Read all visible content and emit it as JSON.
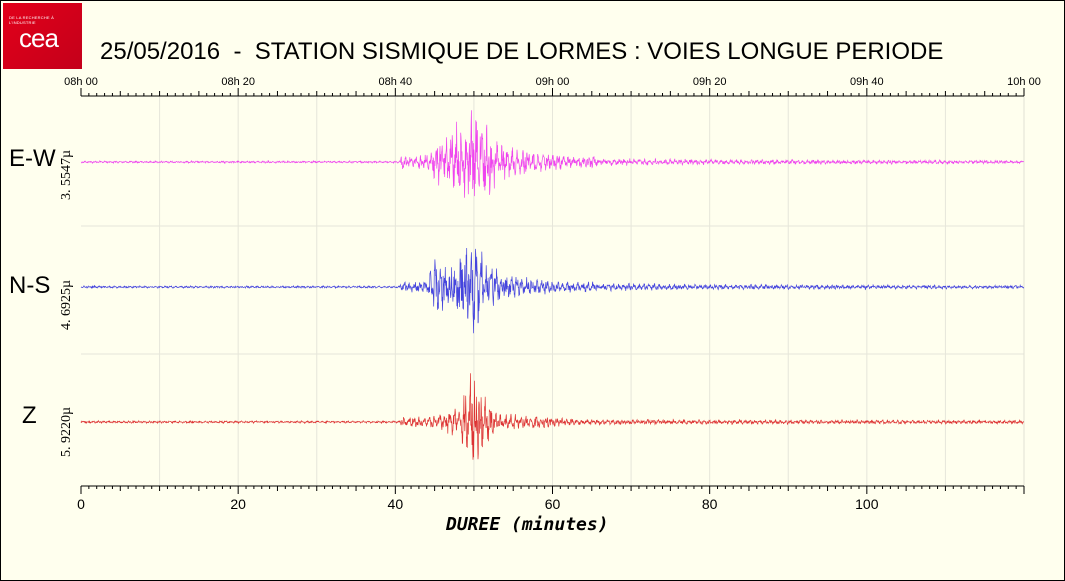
{
  "logo": {
    "text": "cea",
    "tagline": "DE LA RECHERCHE À L'INDUSTRIE",
    "color": "#e2001a"
  },
  "title": "25/05/2016  -  STATION SISMIQUE DE LORMES : VOIES LONGUE PERIODE",
  "chart_data": {
    "type": "line",
    "title": "25/05/2016  -  STATION SISMIQUE DE LORMES : VOIES LONGUE PERIODE",
    "xlabel": "DUREE (minutes)",
    "xlim": [
      0,
      120
    ],
    "x_ticks": [
      "0",
      "20",
      "40",
      "60",
      "80",
      "100"
    ],
    "x_tick_values": [
      0,
      20,
      40,
      60,
      80,
      100
    ],
    "top_axis_ticks": [
      "08h 00",
      "08h 20",
      "08h 40",
      "09h 00",
      "09h 20",
      "09h 40",
      "10h 00"
    ],
    "top_axis_values": [
      0,
      20,
      40,
      60,
      80,
      100,
      120
    ],
    "grid": true,
    "series": [
      {
        "name": "E-W",
        "scale": "3. 5547µ",
        "color": "#ee44ee",
        "envelope": [
          {
            "x": 0,
            "amp": 0.02
          },
          {
            "x": 40.5,
            "amp": 0.02
          },
          {
            "x": 41,
            "amp": 0.2
          },
          {
            "x": 42,
            "amp": 0.08
          },
          {
            "x": 44.5,
            "amp": 0.25
          },
          {
            "x": 46,
            "amp": 0.55
          },
          {
            "x": 48,
            "amp": 0.7
          },
          {
            "x": 50,
            "amp": 1.0
          },
          {
            "x": 52,
            "amp": 0.6
          },
          {
            "x": 54,
            "amp": 0.3
          },
          {
            "x": 57,
            "amp": 0.25
          },
          {
            "x": 62,
            "amp": 0.12
          },
          {
            "x": 65.5,
            "amp": 0.12
          },
          {
            "x": 66,
            "amp": 0.05
          },
          {
            "x": 67,
            "amp": 0.07
          },
          {
            "x": 80,
            "amp": 0.05
          },
          {
            "x": 120,
            "amp": 0.03
          }
        ]
      },
      {
        "name": "N-S",
        "scale": "4. 6925µ",
        "color": "#4444dd",
        "envelope": [
          {
            "x": 0,
            "amp": 0.02
          },
          {
            "x": 40.5,
            "amp": 0.02
          },
          {
            "x": 41,
            "amp": 0.1
          },
          {
            "x": 44,
            "amp": 0.1
          },
          {
            "x": 45,
            "amp": 0.55
          },
          {
            "x": 47,
            "amp": 0.5
          },
          {
            "x": 49,
            "amp": 0.8
          },
          {
            "x": 50,
            "amp": 1.0
          },
          {
            "x": 52,
            "amp": 0.4
          },
          {
            "x": 55,
            "amp": 0.2
          },
          {
            "x": 60,
            "amp": 0.12
          },
          {
            "x": 65,
            "amp": 0.1
          },
          {
            "x": 66,
            "amp": 0.04
          },
          {
            "x": 67.5,
            "amp": 0.07
          },
          {
            "x": 80,
            "amp": 0.05
          },
          {
            "x": 120,
            "amp": 0.03
          }
        ]
      },
      {
        "name": "Z",
        "scale": "5. 9220µ",
        "color": "#dd3333",
        "envelope": [
          {
            "x": 0,
            "amp": 0.02
          },
          {
            "x": 40.5,
            "amp": 0.02
          },
          {
            "x": 41,
            "amp": 0.1
          },
          {
            "x": 44,
            "amp": 0.08
          },
          {
            "x": 46,
            "amp": 0.15
          },
          {
            "x": 48,
            "amp": 0.3
          },
          {
            "x": 50,
            "amp": 1.0
          },
          {
            "x": 51.5,
            "amp": 0.45
          },
          {
            "x": 53,
            "amp": 0.15
          },
          {
            "x": 58,
            "amp": 0.12
          },
          {
            "x": 62,
            "amp": 0.06
          },
          {
            "x": 66,
            "amp": 0.05
          },
          {
            "x": 80,
            "amp": 0.04
          },
          {
            "x": 120,
            "amp": 0.03
          }
        ]
      }
    ]
  }
}
